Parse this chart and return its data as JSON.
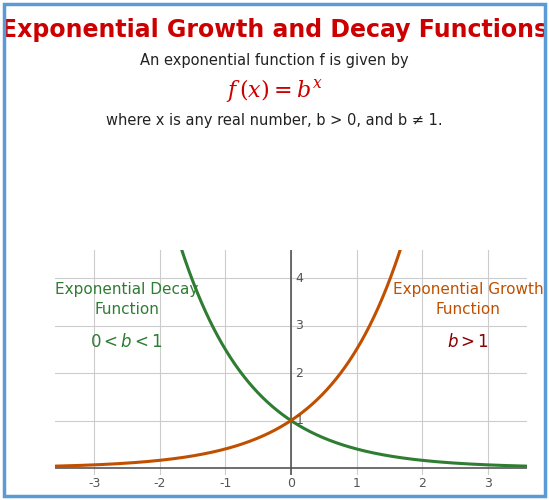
{
  "title": "Exponential Growth and Decay Functions",
  "title_color": "#cc0000",
  "title_fontsize": 17,
  "subtitle1": "An exponential function f is given by",
  "formula": "$f\\,(x) = b^x$",
  "formula_color": "#cc0000",
  "subtitle2": "where x is any real number, b > 0, and b ≠ 1.",
  "decay_label_line1": "Exponential Decay",
  "decay_label_line2": "Function",
  "decay_label_line3": "$0 < b < 1$",
  "decay_color": "#2e7d32",
  "growth_label_line1": "Exponential Growth",
  "growth_label_line2": "Function",
  "growth_label_line3": "$b > 1$",
  "growth_color": "#c05000",
  "growth_italic_color": "#8b0000",
  "xlim": [
    -3.6,
    3.6
  ],
  "ylim": [
    -0.15,
    4.6
  ],
  "yticks": [
    1,
    2,
    3,
    4
  ],
  "xticks": [
    -3,
    -2,
    -1,
    0,
    1,
    2,
    3
  ],
  "bg_color": "#ffffff",
  "border_color": "#5b9bd5",
  "grid_color": "#cccccc",
  "axis_color": "#555555",
  "decay_base": 0.4,
  "growth_base": 2.5
}
